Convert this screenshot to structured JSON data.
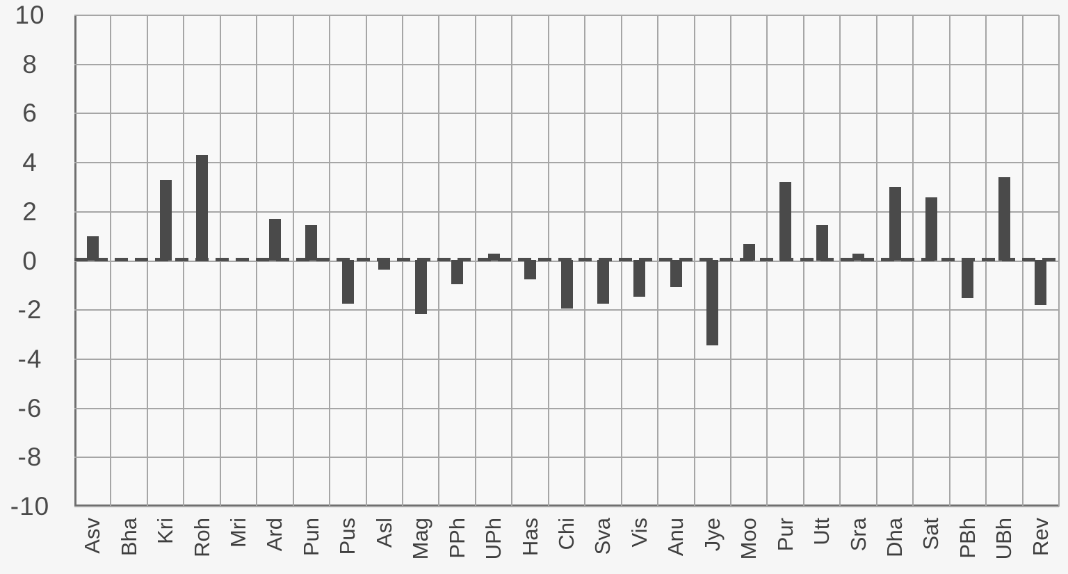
{
  "chart_data": {
    "type": "bar",
    "title": "",
    "xlabel": "",
    "ylabel": "",
    "categories": [
      "Asv",
      "Bha",
      "Kri",
      "Roh",
      "Mri",
      "Ard",
      "Pun",
      "Pus",
      "Asl",
      "Mag",
      "PPh",
      "UPh",
      "Has",
      "Chi",
      "Sva",
      "Vis",
      "Anu",
      "Jye",
      "Moo",
      "Pur",
      "Utt",
      "Sra",
      "Dha",
      "Sat",
      "PBh",
      "UBh",
      "Rev"
    ],
    "values": [
      1.0,
      0,
      3.3,
      4.3,
      0,
      1.7,
      1.45,
      -1.75,
      -0.35,
      -2.15,
      -0.95,
      0.3,
      -0.75,
      -1.95,
      -1.75,
      -1.45,
      -1.05,
      -3.45,
      0.7,
      3.2,
      1.45,
      0.3,
      3.0,
      2.6,
      -1.5,
      3.4,
      -1.8
    ],
    "ylim": [
      -10,
      10
    ],
    "ytick_step": 2,
    "yticks": [
      10,
      8,
      6,
      4,
      2,
      0,
      -2,
      -4,
      -6,
      -8,
      -10
    ],
    "grid": true,
    "legend": false,
    "zero_line_style": "dashed",
    "colors": {
      "bar": "#4a4a4a",
      "grid": "#a6a6a6",
      "axis": "#6f6f6f",
      "tick_text": "#4a4a4a",
      "category_text": "#3f3f3f",
      "background": "#f6f6f6",
      "zero_dash": "#4d4d4d"
    }
  }
}
